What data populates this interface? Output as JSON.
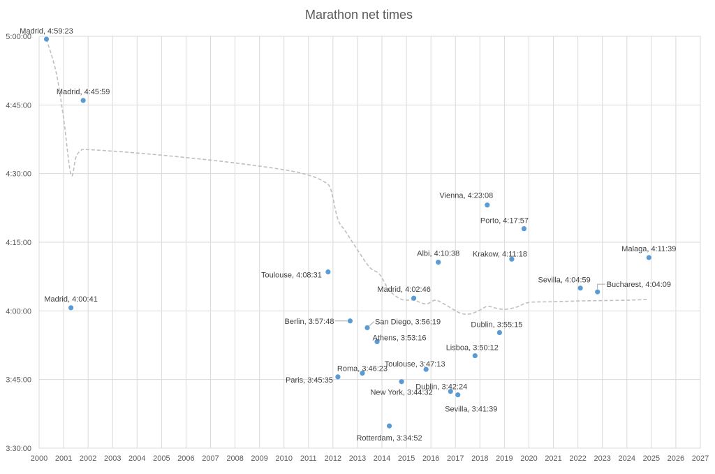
{
  "chart_data": {
    "type": "scatter",
    "title": "Marathon net times",
    "xlabel": "",
    "ylabel": "",
    "xlim": [
      2000,
      2027
    ],
    "ylim_seconds": [
      12600,
      18000
    ],
    "x_ticks": [
      "2000",
      "2001",
      "2002",
      "2003",
      "2004",
      "2005",
      "2006",
      "2007",
      "2008",
      "2009",
      "2010",
      "2011",
      "2012",
      "2013",
      "2014",
      "2015",
      "2016",
      "2017",
      "2018",
      "2019",
      "2020",
      "2021",
      "2022",
      "2023",
      "2024",
      "2025",
      "2026",
      "2027"
    ],
    "y_ticks": [
      "3:30:00",
      "3:45:00",
      "4:00:00",
      "4:15:00",
      "4:30:00",
      "4:45:00",
      "5:00:00"
    ],
    "grid": true,
    "legend": "none",
    "marker_color": "#5b9bd5",
    "trend_color": "#bfbfbf",
    "points": [
      {
        "x": 2000.3,
        "city": "Madrid",
        "time": "4:59:23",
        "label": "Madrid, 4:59:23"
      },
      {
        "x": 2001.3,
        "city": "Madrid",
        "time": "4:00:41",
        "label": "Madrid, 4:00:41"
      },
      {
        "x": 2001.8,
        "city": "Madrid",
        "time": "4:45:59",
        "label": "Madrid, 4:45:59"
      },
      {
        "x": 2011.8,
        "city": "Toulouse",
        "time": "4:08:31",
        "label": "Toulouse, 4:08:31"
      },
      {
        "x": 2012.2,
        "city": "Paris",
        "time": "3:45:35",
        "label": "Paris, 3:45:35"
      },
      {
        "x": 2012.7,
        "city": "Berlin",
        "time": "3:57:48",
        "label": "Berlin, 3:57:48"
      },
      {
        "x": 2013.2,
        "city": "Roma",
        "time": "3:46:23",
        "label": "Roma, 3:46:23"
      },
      {
        "x": 2013.4,
        "city": "San Diego",
        "time": "3:56:19",
        "label": "San Diego, 3:56:19"
      },
      {
        "x": 2013.8,
        "city": "Athens",
        "time": "3:53:16",
        "label": "Athens, 3:53:16"
      },
      {
        "x": 2014.3,
        "city": "Rotterdam",
        "time": "3:34:52",
        "label": "Rotterdam, 3:34:52"
      },
      {
        "x": 2014.8,
        "city": "New York",
        "time": "3:44:32",
        "label": "New York, 3:44:32"
      },
      {
        "x": 2015.3,
        "city": "Madrid",
        "time": "4:02:46",
        "label": "Madrid, 4:02:46"
      },
      {
        "x": 2015.8,
        "city": "Toulouse",
        "time": "3:47:13",
        "label": "Toulouse, 3:47:13"
      },
      {
        "x": 2016.3,
        "city": "Albi",
        "time": "4:10:38",
        "label": "Albi, 4:10:38"
      },
      {
        "x": 2016.8,
        "city": "Dublin",
        "time": "3:42:24",
        "label": "Dublin, 3:42:24"
      },
      {
        "x": 2017.1,
        "city": "Sevilla",
        "time": "3:41:39",
        "label": "Sevilla, 3:41:39"
      },
      {
        "x": 2017.8,
        "city": "Lisboa",
        "time": "3:50:12",
        "label": "Lisboa, 3:50:12"
      },
      {
        "x": 2018.3,
        "city": "Vienna",
        "time": "4:23:08",
        "label": "Vienna, 4:23:08"
      },
      {
        "x": 2018.8,
        "city": "Dublin",
        "time": "3:55:15",
        "label": "Dublin, 3:55:15"
      },
      {
        "x": 2019.3,
        "city": "Krakow",
        "time": "4:11:18",
        "label": "Krakow, 4:11:18"
      },
      {
        "x": 2019.8,
        "city": "Porto",
        "time": "4:17:57",
        "label": "Porto, 4:17:57"
      },
      {
        "x": 2022.1,
        "city": "Sevilla",
        "time": "4:04:59",
        "label": "Sevilla, 4:04:59"
      },
      {
        "x": 2022.8,
        "city": "Bucharest",
        "time": "4:04:09",
        "label": "Bucharest, 4:04:09"
      },
      {
        "x": 2024.9,
        "city": "Malaga",
        "time": "4:11:39",
        "label": "Malaga, 4:11:39"
      }
    ],
    "trendline": {
      "style": "dashed",
      "x": [
        2000.3,
        2000.7,
        2001.0,
        2001.3,
        2001.5,
        2001.7,
        2002.0,
        2004.0,
        2006.0,
        2008.0,
        2010.0,
        2011.0,
        2011.6,
        2011.9,
        2012.2,
        2012.5,
        2013.0,
        2013.5,
        2013.9,
        2014.3,
        2014.8,
        2015.3,
        2015.8,
        2016.2,
        2016.7,
        2017.2,
        2017.6,
        2018.0,
        2018.3,
        2018.6,
        2019.0,
        2019.5,
        2020.0,
        2021.0,
        2022.0,
        2023.0,
        2024.0,
        2024.9
      ],
      "y": [
        "4:59:23",
        "4:52:00",
        "4:42:00",
        "4:29:45",
        "4:33:30",
        "4:35:00",
        "4:35:15",
        "4:34:30",
        "4:33:30",
        "4:32:20",
        "4:30:50",
        "4:29:40",
        "4:28:20",
        "4:26:40",
        "4:20:00",
        "4:17:30",
        "4:13:20",
        "4:09:30",
        "4:08:00",
        "4:04:30",
        "4:02:30",
        "4:02:20",
        "4:01:30",
        "4:02:20",
        "4:01:00",
        "3:59:30",
        "3:59:20",
        "4:00:10",
        "4:01:00",
        "4:00:40",
        "4:00:20",
        "4:00:50",
        "4:01:50",
        "4:02:00",
        "4:02:10",
        "4:02:15",
        "4:02:20",
        "4:02:30"
      ]
    }
  }
}
